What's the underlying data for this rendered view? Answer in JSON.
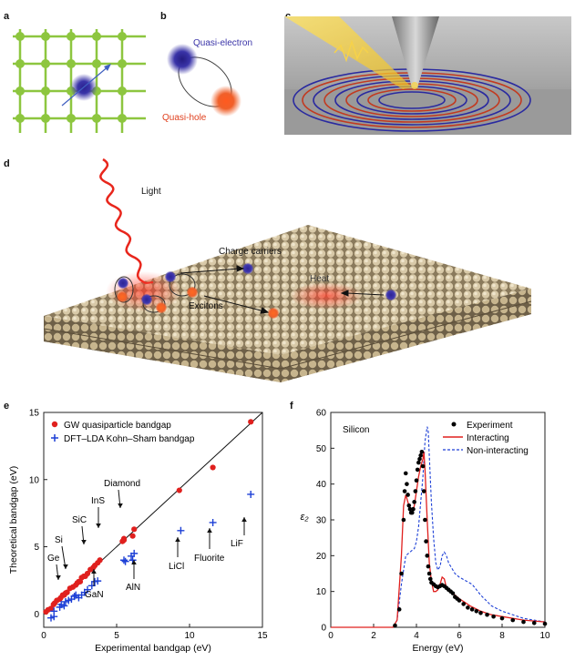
{
  "panels": {
    "a": {
      "label": "a"
    },
    "b": {
      "label": "b",
      "electron": "Quasi-electron",
      "hole": "Quasi-hole"
    },
    "c": {
      "label": "c"
    },
    "d": {
      "label": "d",
      "light": "Light",
      "charge_carriers": "Charge carriers",
      "excitons": "Excitons",
      "heat": "Heat"
    },
    "e": {
      "label": "e"
    },
    "f": {
      "label": "f"
    }
  },
  "colors": {
    "lattice": "#8dc63f",
    "electron": "#3a34a8",
    "hole": "#f0602a",
    "gw": "#e0201e",
    "dft": "#1c3fd6",
    "light": "#e8261c"
  },
  "chart_data": [
    {
      "type": "scatter",
      "xlabel": "Experimental bandgap (eV)",
      "ylabel": "Theoretical bandgap (eV)",
      "xlim": [
        0,
        15
      ],
      "ylim": [
        -1,
        15
      ],
      "xticks": [
        "0",
        "5",
        "10",
        "15"
      ],
      "yticks": [
        "0",
        "5",
        "10",
        "15"
      ],
      "legend_position": "top-left",
      "series": [
        {
          "name": "GW quasiparticle bandgap",
          "marker": "circle",
          "color": "#e0201e",
          "x": [
            0.15,
            0.3,
            0.5,
            0.67,
            0.75,
            0.9,
            1.1,
            1.17,
            1.3,
            1.4,
            1.5,
            1.6,
            1.8,
            2.0,
            2.2,
            2.3,
            2.4,
            2.5,
            2.6,
            2.75,
            2.85,
            3.0,
            3.2,
            3.4,
            3.5,
            3.7,
            3.85,
            5.4,
            5.5,
            5.5,
            6.1,
            6.2,
            9.3,
            11.6,
            14.2
          ],
          "y": [
            0.15,
            0.3,
            0.4,
            0.7,
            0.8,
            1.0,
            1.1,
            1.2,
            1.4,
            1.4,
            1.55,
            1.6,
            1.9,
            2.0,
            2.15,
            2.3,
            2.4,
            2.4,
            2.7,
            2.8,
            2.8,
            3.0,
            3.3,
            3.45,
            3.6,
            3.8,
            4.0,
            5.4,
            5.6,
            5.5,
            5.8,
            6.3,
            9.2,
            10.9,
            14.3
          ]
        },
        {
          "name": "DFT–LDA Kohn–Sham bandgap",
          "marker": "plus",
          "color": "#1c3fd6",
          "x": [
            0.5,
            0.7,
            0.7,
            1.1,
            1.2,
            1.4,
            1.5,
            1.7,
            1.9,
            2.1,
            2.2,
            2.4,
            2.6,
            2.8,
            3.0,
            3.3,
            3.5,
            3.7,
            5.5,
            5.6,
            6.0,
            6.1,
            6.2,
            9.4,
            11.6,
            14.2
          ],
          "y": [
            -0.3,
            -0.2,
            0.2,
            0.5,
            0.7,
            0.6,
            0.9,
            1.0,
            1.1,
            1.3,
            1.4,
            1.2,
            1.4,
            1.6,
            1.8,
            2.1,
            2.4,
            2.45,
            4.0,
            3.9,
            4.3,
            4.0,
            4.5,
            6.2,
            6.8,
            8.9
          ]
        }
      ],
      "reference_line": {
        "x": [
          0,
          15
        ],
        "y": [
          0,
          15
        ]
      },
      "annotations": [
        "Ge",
        "Si",
        "SiC",
        "InS",
        "Diamond",
        "GaN",
        "AlN",
        "LiCl",
        "Fluorite",
        "LiF"
      ]
    },
    {
      "type": "line",
      "title": "Silicon",
      "xlabel": "Energy (eV)",
      "ylabel": "ε₂",
      "xlim": [
        0,
        10
      ],
      "ylim": [
        0,
        60
      ],
      "xticks": [
        "0",
        "2",
        "4",
        "6",
        "8",
        "10"
      ],
      "yticks": [
        "0",
        "10",
        "20",
        "30",
        "40",
        "50",
        "60"
      ],
      "legend_position": "top-right",
      "series": [
        {
          "name": "Experiment",
          "style": "dots",
          "color": "#000000",
          "x": [
            3.0,
            3.2,
            3.3,
            3.4,
            3.45,
            3.5,
            3.55,
            3.6,
            3.65,
            3.7,
            3.75,
            3.8,
            3.85,
            3.9,
            3.95,
            4.0,
            4.05,
            4.1,
            4.15,
            4.2,
            4.25,
            4.3,
            4.35,
            4.4,
            4.45,
            4.5,
            4.55,
            4.6,
            4.65,
            4.7,
            4.8,
            4.9,
            5.0,
            5.1,
            5.2,
            5.3,
            5.4,
            5.5,
            5.6,
            5.7,
            5.8,
            5.9,
            6.0,
            6.2,
            6.4,
            6.6,
            6.8,
            7.0,
            7.3,
            7.6,
            8.0,
            8.5,
            9.0,
            9.5,
            10.0
          ],
          "y": [
            0.5,
            5,
            15,
            30,
            38,
            43,
            40,
            37,
            34,
            33,
            32,
            32,
            33,
            35,
            38,
            41,
            44,
            46,
            47,
            48,
            49,
            45,
            38,
            30,
            24,
            20,
            17,
            15,
            13.5,
            12.5,
            12,
            11.5,
            11.2,
            11.5,
            11.8,
            11.5,
            11,
            10.5,
            10,
            9.5,
            8.5,
            8,
            7.5,
            6.5,
            5.5,
            5,
            4.5,
            4,
            3.5,
            3,
            2.5,
            2,
            1.5,
            1.2,
            1
          ]
        },
        {
          "name": "Interacting",
          "style": "solid",
          "color": "#e0201e",
          "x": [
            0,
            2.9,
            3.1,
            3.3,
            3.4,
            3.5,
            3.6,
            3.7,
            3.8,
            3.9,
            4.0,
            4.1,
            4.2,
            4.3,
            4.35,
            4.4,
            4.5,
            4.6,
            4.7,
            4.8,
            4.9,
            5.0,
            5.1,
            5.2,
            5.3,
            5.4,
            5.5,
            5.6,
            5.8,
            6.0,
            6.5,
            7.0,
            7.5,
            8.0,
            9.0,
            10.0
          ],
          "y": [
            0,
            0,
            2,
            20,
            34,
            37,
            35,
            33,
            32,
            34,
            38,
            42,
            45,
            47,
            49,
            44,
            30,
            18,
            13,
            10,
            10,
            10.5,
            12,
            14,
            13.5,
            11,
            10.5,
            10,
            9,
            8,
            6,
            4.5,
            3.5,
            3,
            2,
            1.5
          ]
        },
        {
          "name": "Non-interacting",
          "style": "dashed",
          "color": "#1c3fd6",
          "x": [
            0,
            2.9,
            3.1,
            3.3,
            3.5,
            3.7,
            3.9,
            4.0,
            4.1,
            4.2,
            4.3,
            4.4,
            4.5,
            4.55,
            4.6,
            4.7,
            4.8,
            4.9,
            5.0,
            5.1,
            5.2,
            5.3,
            5.4,
            5.5,
            5.6,
            5.8,
            6.0,
            6.3,
            6.6,
            7.0,
            7.5,
            8.0,
            9.0,
            10.0
          ],
          "y": [
            0,
            0,
            2,
            12,
            20,
            21,
            22,
            24,
            28,
            35,
            42,
            52,
            56,
            55,
            48,
            35,
            25,
            18,
            16,
            17,
            20,
            21,
            20,
            18,
            17,
            15,
            14,
            13,
            12,
            9,
            6,
            4.5,
            2.5,
            1.5
          ]
        }
      ]
    }
  ]
}
